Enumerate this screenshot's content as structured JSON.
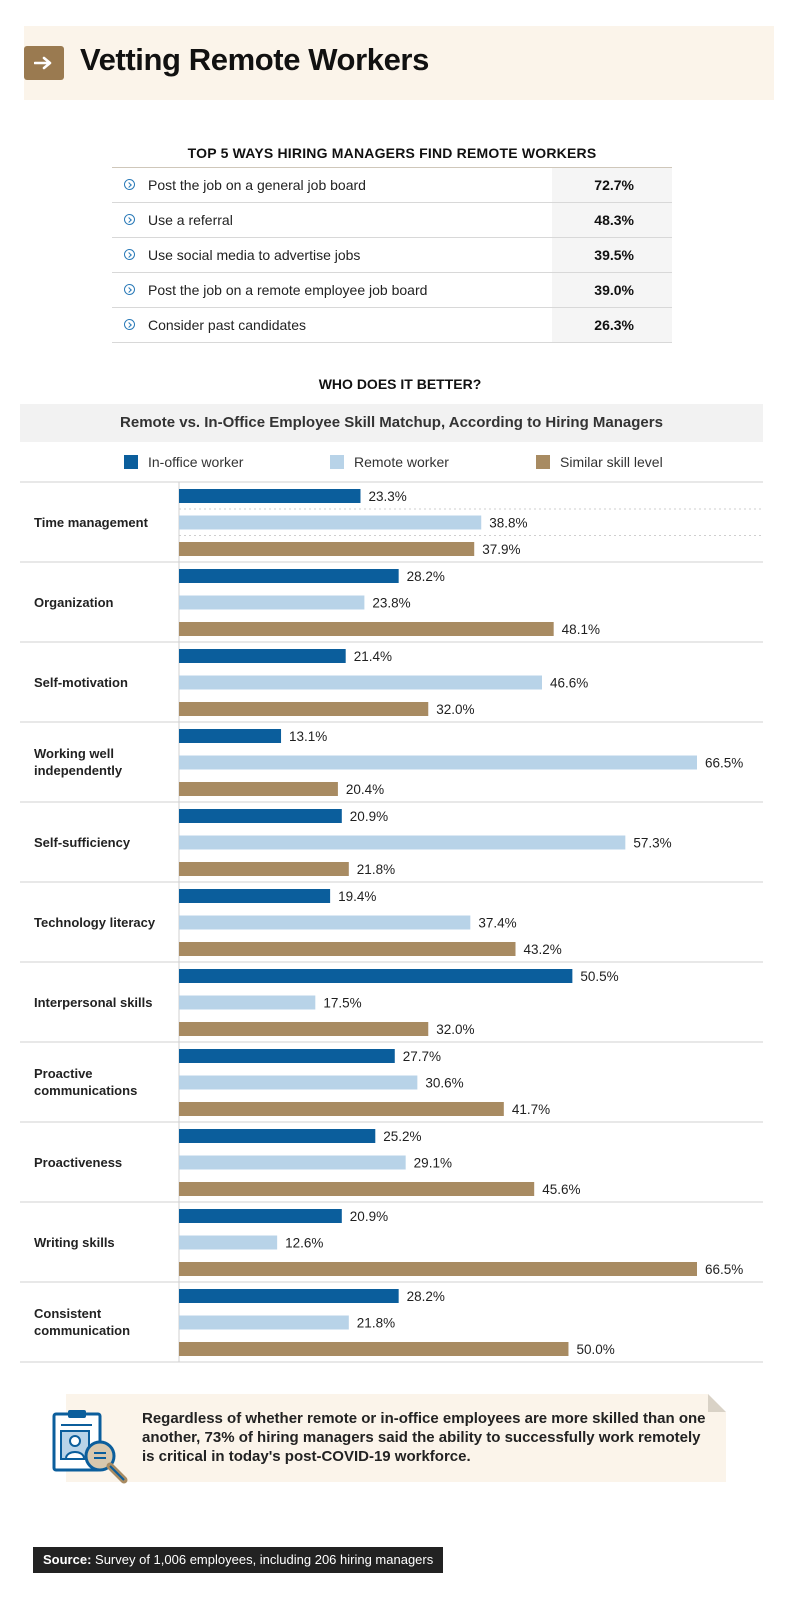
{
  "header": {
    "title": "Vetting Remote Workers",
    "icon": "arrow-right-icon"
  },
  "colors": {
    "in_office": "#0b5e9c",
    "remote": "#b8d3e8",
    "similar": "#a88b62",
    "accent": "#9a7a50",
    "cream": "#fbf4ea"
  },
  "top5": {
    "heading": "TOP 5 WAYS HIRING MANAGERS FIND REMOTE WORKERS",
    "rows": [
      {
        "label": "Post the job on a general job board",
        "value": "72.7%"
      },
      {
        "label": "Use a referral",
        "value": "48.3%"
      },
      {
        "label": "Use social media to advertise jobs",
        "value": "39.5%"
      },
      {
        "label": "Post the job on a remote employee job board",
        "value": "39.0%"
      },
      {
        "label": "Consider past candidates",
        "value": "26.3%"
      }
    ]
  },
  "chart_data": {
    "type": "bar",
    "orientation": "horizontal",
    "heading": "WHO DOES IT BETTER?",
    "title": "Remote vs. In-Office Employee Skill Matchup, According to Hiring Managers",
    "categories": [
      "Time management",
      "Organization",
      "Self-motivation",
      "Working well independently",
      "Self-sufficiency",
      "Technology literacy",
      "Interpersonal skills",
      "Proactive communications",
      "Proactiveness",
      "Writing skills",
      "Consistent communication"
    ],
    "series": [
      {
        "name": "In-office worker",
        "values": [
          23.3,
          28.2,
          21.4,
          13.1,
          20.9,
          19.4,
          50.5,
          27.7,
          25.2,
          20.9,
          28.2
        ]
      },
      {
        "name": "Remote worker",
        "values": [
          38.8,
          23.8,
          46.6,
          66.5,
          57.3,
          37.4,
          17.5,
          30.6,
          29.1,
          12.6,
          21.8
        ]
      },
      {
        "name": "Similar skill level",
        "values": [
          37.9,
          48.1,
          32.0,
          20.4,
          21.8,
          43.2,
          32.0,
          41.7,
          45.6,
          66.5,
          50.0
        ]
      }
    ],
    "value_suffix": "%",
    "xlim": [
      0,
      66.5
    ],
    "grid": false,
    "legend_position": "top"
  },
  "callout": {
    "icon": "search-candidate-icon",
    "text": "Regardless of whether remote or in-office employees are more skilled than one another, 73% of hiring managers said the ability to successfully work remotely is critical in today's post-COVID-19 workforce."
  },
  "source": {
    "label": "Source:",
    "text": "Survey of 1,006 employees, including 206 hiring managers"
  }
}
